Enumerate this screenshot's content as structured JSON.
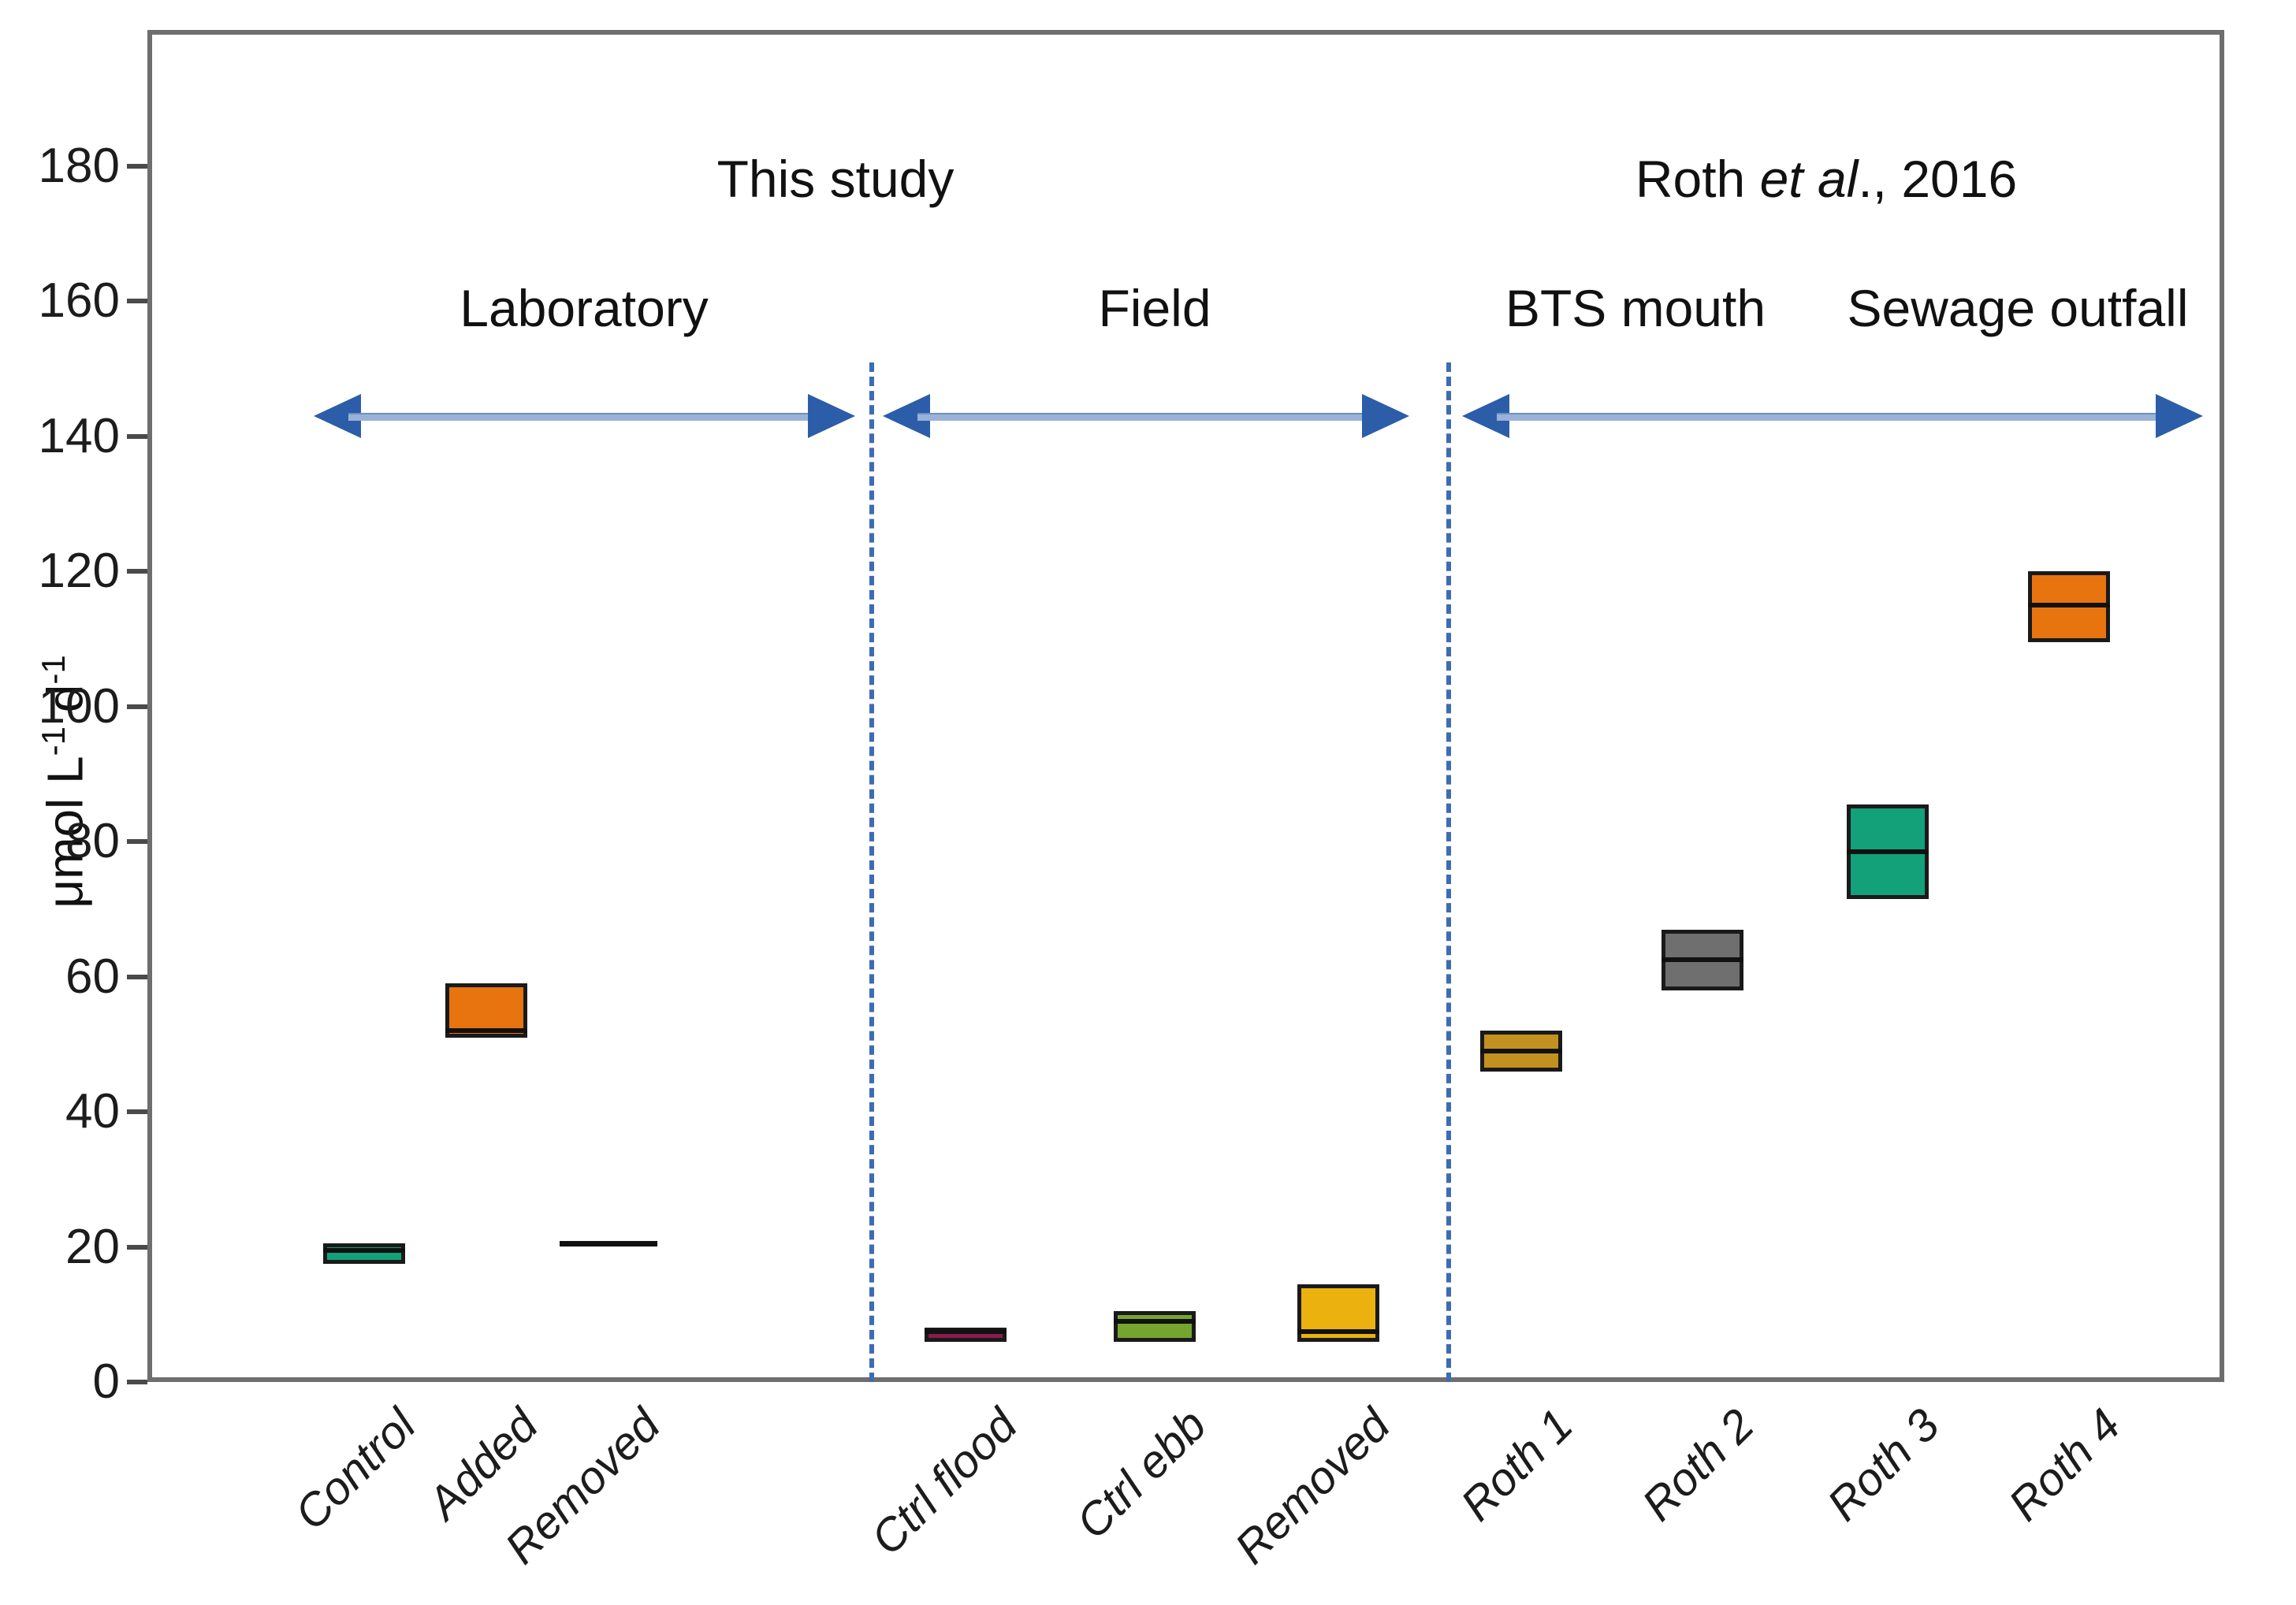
{
  "figure": {
    "ylabel": {
      "base1": "μmol L",
      "sup1": "-1",
      "base2": " d",
      "sup2": "-1"
    },
    "headers": {
      "this_study": "This study",
      "roth_pre": "Roth ",
      "roth_italic": "et al",
      "roth_post": "., 2016",
      "laboratory": "Laboratory",
      "field": "Field",
      "bts_mouth": "BTS mouth",
      "sewage_outfall": "Sewage outfall"
    },
    "colors": {
      "separator": "#3c6cb4",
      "arrow_head": "#2c5da9",
      "arrow_shaft": "#9ab2d8",
      "frame": "#6e6e6e",
      "box_edge": "#1a1a1a"
    }
  },
  "chart_data": {
    "type": "box",
    "ylabel": "μmol L-1 d-1",
    "ylim": [
      0,
      200
    ],
    "yticks": [
      0,
      20,
      40,
      60,
      80,
      100,
      120,
      140,
      160,
      180
    ],
    "grid": false,
    "legend": "none",
    "groups": [
      {
        "study": "This study",
        "section": "Laboratory",
        "categories": [
          {
            "label": "Control",
            "color": "#12a179",
            "q1": 17.5,
            "median": 19.5,
            "q3": 20.5,
            "flat": false
          },
          {
            "label": "Added",
            "color": "#e7740e",
            "q1": 51,
            "median": 52,
            "q3": 59,
            "flat": false
          },
          {
            "label": "Removed",
            "color": "#111111",
            "q1": 20.5,
            "median": 20.5,
            "q3": 20.5,
            "flat": true
          }
        ]
      },
      {
        "study": "This study",
        "section": "Field",
        "categories": [
          {
            "label": "Ctrl flood",
            "color": "#8c1a4d",
            "q1": 6,
            "median": 7.5,
            "q3": 8,
            "flat": false
          },
          {
            "label": "Ctrl ebb",
            "color": "#74a52f",
            "q1": 6,
            "median": 9,
            "q3": 10.5,
            "flat": false
          },
          {
            "label": "Removed",
            "color": "#ebb10e",
            "q1": 6,
            "median": 7.5,
            "q3": 14.5,
            "flat": false
          }
        ]
      },
      {
        "study": "Roth et al., 2016",
        "section": "BTS mouth / Sewage outfall",
        "categories": [
          {
            "label": "Roth 1",
            "color": "#c3911f",
            "q1": 46,
            "median": 49,
            "q3": 52,
            "flat": false
          },
          {
            "label": "Roth 2",
            "color": "#6f6f6f",
            "q1": 58,
            "median": 62.5,
            "q3": 67,
            "flat": false
          },
          {
            "label": "Roth 3",
            "color": "#12a179",
            "q1": 71.5,
            "median": 78.5,
            "q3": 85.5,
            "flat": false
          },
          {
            "label": "Roth 4",
            "color": "#e7740e",
            "q1": 109.5,
            "median": 115,
            "q3": 120,
            "flat": false
          }
        ]
      }
    ]
  }
}
